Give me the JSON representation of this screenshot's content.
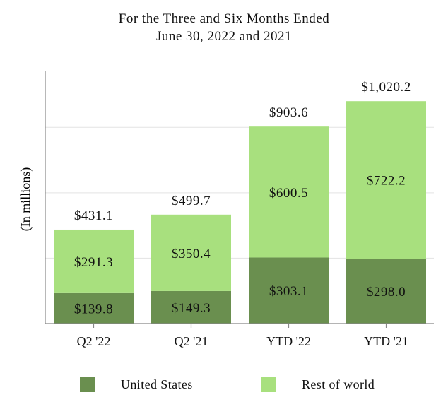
{
  "chart_data": {
    "type": "bar",
    "stacked": true,
    "title": "For the Three and Six Months Ended",
    "subtitle": "June 30, 2022 and 2021",
    "ylabel": "(In millions)",
    "xlabel": "",
    "ylim": [
      0,
      1150
    ],
    "grid": true,
    "legend_position": "bottom",
    "categories": [
      "Q2 '22",
      "Q2 '21",
      "YTD '22",
      "YTD '21"
    ],
    "series": [
      {
        "name": "United States",
        "color": "#6a8f4f",
        "values": [
          139.8,
          149.3,
          303.1,
          298.0
        ],
        "labels": [
          "$139.8",
          "$149.3",
          "$303.1",
          "$298.0"
        ]
      },
      {
        "name": "Rest of world",
        "color": "#a8e07e",
        "values": [
          291.3,
          350.4,
          600.5,
          722.2
        ],
        "labels": [
          "$291.3",
          "$350.4",
          "$600.5",
          "$722.2"
        ]
      }
    ],
    "totals": [
      431.1,
      499.7,
      903.6,
      1020.2
    ],
    "total_labels": [
      "$431.1",
      "$499.7",
      "$903.6",
      "$1,020.2"
    ]
  }
}
